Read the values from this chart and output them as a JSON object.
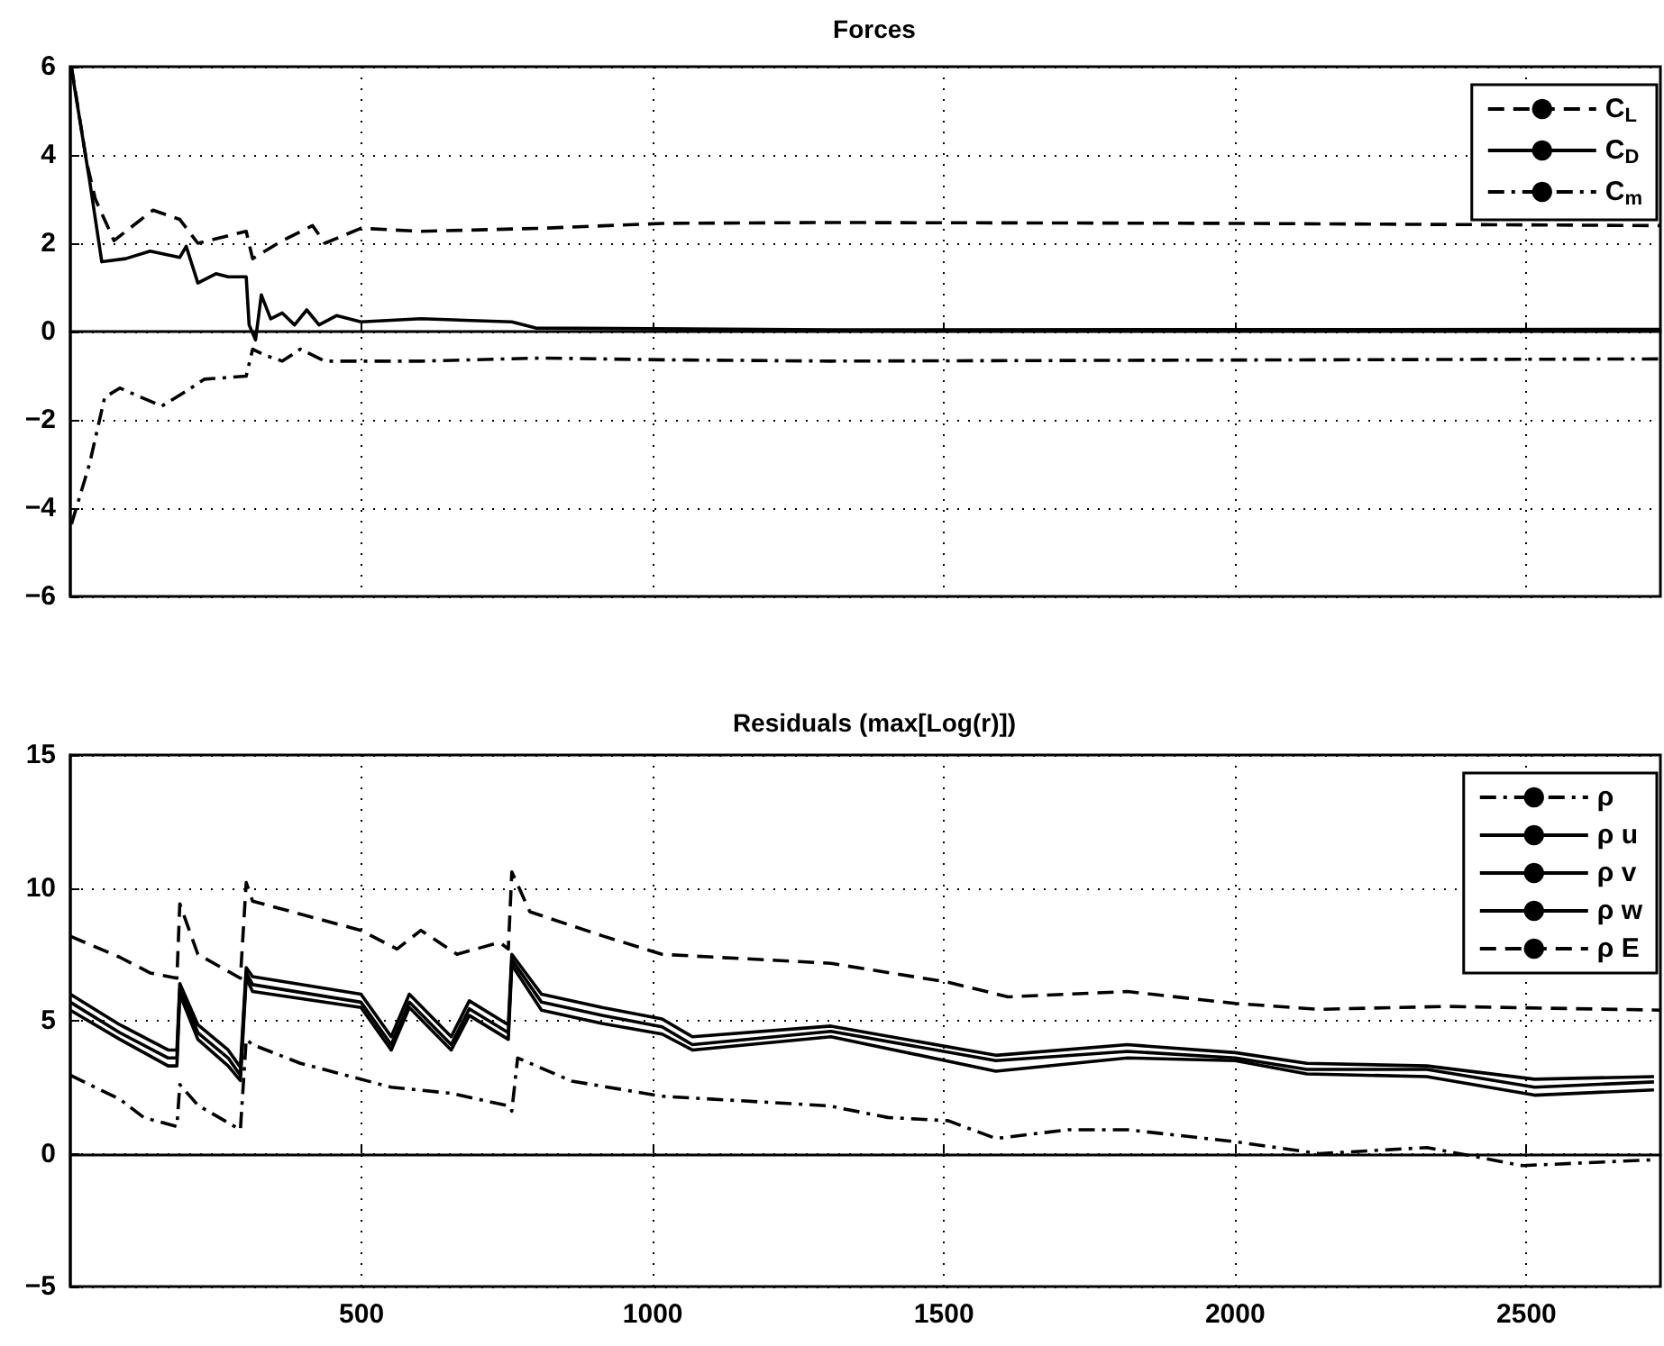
{
  "chart_data": [
    {
      "type": "line",
      "title": "Forces",
      "xlim": [
        0,
        2730
      ],
      "xticks": [
        500,
        1000,
        1500,
        2000,
        2500
      ],
      "ylim": [
        -6,
        6
      ],
      "yticks": [
        -6,
        -4,
        -2,
        0,
        2,
        4,
        6
      ],
      "grid": true,
      "legend": "top right",
      "tick_labels": "y",
      "marker": "none",
      "series": [
        {
          "name": "C$_{L}$",
          "color": "#000000",
          "line_style": "dashed",
          "x": [
            2,
            28,
            43,
            75,
            142,
            188,
            219,
            302,
            313,
            364,
            416,
            437,
            499,
            602,
            809,
            1016,
            1306,
            2000,
            2730
          ],
          "values": [
            6,
            3.84,
            3.0,
            2.06,
            2.75,
            2.54,
            2.0,
            2.27,
            1.65,
            2.06,
            2.4,
            2.0,
            2.34,
            2.27,
            2.34,
            2.45,
            2.47,
            2.45,
            2.4
          ]
        },
        {
          "name": "C$_{D}$",
          "color": "#000000",
          "line_style": "solid",
          "x": [
            2,
            33,
            54,
            95,
            137,
            188,
            199,
            219,
            250,
            271,
            302,
            307,
            318,
            328,
            344,
            364,
            385,
            406,
            427,
            457,
            499,
            602,
            758,
            799,
            1306,
            2730
          ],
          "values": [
            5.96,
            3.43,
            1.58,
            1.65,
            1.82,
            1.68,
            1.93,
            1.1,
            1.31,
            1.24,
            1.24,
            0.15,
            -0.19,
            0.83,
            0.29,
            0.42,
            0.15,
            0.49,
            0.15,
            0.36,
            0.22,
            0.29,
            0.22,
            0.08,
            0.04,
            0.05
          ]
        },
        {
          "name": "C$_{m}$",
          "color": "#000000",
          "line_style": "dashdot",
          "x": [
            2,
            33,
            59,
            85,
            157,
            199,
            230,
            302,
            313,
            333,
            364,
            395,
            437,
            602,
            809,
            1016,
            1306,
            2730
          ],
          "values": [
            -4.36,
            -3.0,
            -1.49,
            -1.28,
            -1.69,
            -1.35,
            -1.08,
            -1.01,
            -0.4,
            -0.53,
            -0.67,
            -0.4,
            -0.67,
            -0.67,
            -0.6,
            -0.64,
            -0.67,
            -0.62
          ]
        }
      ]
    },
    {
      "type": "line",
      "title": "Residuals (max[Log(r)])",
      "xlim": [
        0,
        2730
      ],
      "xticks": [
        500,
        1000,
        1500,
        2000,
        2500
      ],
      "ylim": [
        -5,
        15
      ],
      "yticks": [
        -5,
        0,
        5,
        10,
        15
      ],
      "grid": true,
      "legend": "top right",
      "marker": "none",
      "series": [
        {
          "name": "ρ",
          "color": "#000000",
          "line_style": "dashdot",
          "x": [
            0,
            33,
            85,
            126,
            183,
            188,
            219,
            292,
            302,
            313,
            395,
            551,
            654,
            752,
            758,
            768,
            861,
            1016,
            1302,
            1404,
            1507,
            1589,
            1713,
            1815,
            2000,
            2144,
            2329,
            2493,
            2719
          ],
          "values": [
            2.95,
            2.6,
            2.05,
            1.36,
            1.02,
            2.6,
            1.82,
            0.9,
            4.3,
            4.1,
            3.4,
            2.5,
            2.27,
            1.8,
            1.6,
            3.6,
            2.73,
            2.16,
            1.8,
            1.36,
            1.24,
            0.57,
            0.9,
            0.9,
            0.45,
            0,
            0.23,
            -0.45,
            -0.23
          ]
        },
        {
          "name": "ρ u",
          "color": "#000000",
          "line_style": "solid",
          "x": [
            0,
            85,
            168,
            183,
            188,
            219,
            271,
            292,
            302,
            313,
            499,
            551,
            582,
            654,
            685,
            752,
            758,
            809,
            913,
            1016,
            1068,
            1306,
            1589,
            1815,
            2000,
            2123,
            2329,
            2514,
            2719
          ],
          "values": [
            6.0,
            4.85,
            3.9,
            3.9,
            6.4,
            4.85,
            3.9,
            3.25,
            7.0,
            6.66,
            6.0,
            4.4,
            6.0,
            4.4,
            5.75,
            4.85,
            7.5,
            6.0,
            5.5,
            5.07,
            4.4,
            4.8,
            3.7,
            4.1,
            3.8,
            3.4,
            3.3,
            2.8,
            2.9
          ]
        },
        {
          "name": "ρ v",
          "color": "#000000",
          "line_style": "solid",
          "x": [
            0,
            85,
            168,
            183,
            188,
            219,
            271,
            292,
            302,
            313,
            499,
            551,
            582,
            654,
            685,
            752,
            758,
            809,
            913,
            1016,
            1068,
            1306,
            1589,
            1815,
            2000,
            2123,
            2329,
            2514,
            2719
          ],
          "values": [
            5.7,
            4.55,
            3.6,
            3.6,
            6.2,
            4.55,
            3.6,
            2.95,
            6.8,
            6.36,
            5.7,
            4.1,
            5.7,
            4.1,
            5.45,
            4.55,
            7.3,
            5.7,
            5.2,
            4.77,
            4.1,
            4.6,
            3.5,
            3.85,
            3.6,
            3.17,
            3.17,
            2.5,
            2.7
          ]
        },
        {
          "name": "ρ w",
          "color": "#000000",
          "line_style": "solid",
          "x": [
            0,
            85,
            168,
            183,
            188,
            219,
            271,
            292,
            302,
            313,
            499,
            551,
            582,
            654,
            685,
            752,
            758,
            809,
            913,
            1016,
            1068,
            1306,
            1589,
            1815,
            2000,
            2123,
            2329,
            2514,
            2719
          ],
          "values": [
            5.4,
            4.3,
            3.3,
            3.3,
            6.0,
            4.3,
            3.3,
            2.75,
            6.6,
            6.1,
            5.5,
            3.9,
            5.5,
            3.9,
            5.2,
            4.3,
            7.1,
            5.4,
            4.9,
            4.5,
            3.9,
            4.4,
            3.1,
            3.6,
            3.5,
            3.0,
            2.9,
            2.2,
            2.4
          ]
        },
        {
          "name": "ρ E",
          "color": "#000000",
          "line_style": "dashed",
          "x": [
            0,
            85,
            137,
            183,
            188,
            219,
            292,
            302,
            313,
            499,
            561,
            602,
            664,
            737,
            752,
            758,
            789,
            913,
            1016,
            1306,
            1507,
            1610,
            1815,
            2000,
            2144,
            2360,
            2730
          ],
          "values": [
            8.18,
            7.39,
            6.8,
            6.6,
            9.4,
            7.5,
            6.6,
            10.2,
            9.5,
            8.4,
            7.7,
            8.4,
            7.5,
            7.95,
            7.7,
            10.6,
            9.1,
            8.2,
            7.5,
            7.16,
            6.45,
            5.9,
            6.1,
            5.65,
            5.43,
            5.54,
            5.4
          ]
        }
      ]
    }
  ]
}
